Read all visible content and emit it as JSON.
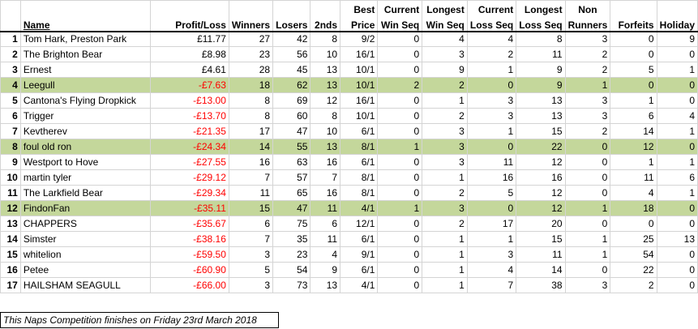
{
  "headers": {
    "row1": [
      "",
      "",
      "",
      "",
      "",
      "",
      "Best",
      "Current",
      "Longest",
      "Current",
      "Longest",
      "Non",
      "",
      ""
    ],
    "row2": [
      "",
      "Name",
      "Profit/Loss",
      "Winners",
      "Losers",
      "2nds",
      "Price",
      "Win Seq",
      "Win Seq",
      "Loss Seq",
      "Loss Seq",
      "Runners",
      "Forfeits",
      "Holiday"
    ]
  },
  "rows": [
    {
      "num": "1",
      "name": "Tom Hark, Preston Park",
      "pl": "£11.77",
      "win": "27",
      "lose": "42",
      "sec": "8",
      "price": "9/2",
      "cws": "0",
      "lws": "4",
      "cls": "4",
      "lls": "8",
      "nr": "3",
      "forf": "0",
      "hol": "9",
      "neg": false,
      "hl": false
    },
    {
      "num": "2",
      "name": "The Brighton Bear",
      "pl": "£8.98",
      "win": "23",
      "lose": "56",
      "sec": "10",
      "price": "16/1",
      "cws": "0",
      "lws": "3",
      "cls": "2",
      "lls": "11",
      "nr": "2",
      "forf": "0",
      "hol": "0",
      "neg": false,
      "hl": false
    },
    {
      "num": "3",
      "name": "Ernest",
      "pl": "£4.61",
      "win": "28",
      "lose": "45",
      "sec": "13",
      "price": "10/1",
      "cws": "0",
      "lws": "9",
      "cls": "1",
      "lls": "9",
      "nr": "2",
      "forf": "5",
      "hol": "1",
      "neg": false,
      "hl": false
    },
    {
      "num": "4",
      "name": "Leegull",
      "pl": "-£7.63",
      "win": "18",
      "lose": "62",
      "sec": "13",
      "price": "10/1",
      "cws": "2",
      "lws": "2",
      "cls": "0",
      "lls": "9",
      "nr": "1",
      "forf": "0",
      "hol": "0",
      "neg": true,
      "hl": true
    },
    {
      "num": "5",
      "name": "Cantona's Flying Dropkick",
      "pl": "-£13.00",
      "win": "8",
      "lose": "69",
      "sec": "12",
      "price": "16/1",
      "cws": "0",
      "lws": "1",
      "cls": "3",
      "lls": "13",
      "nr": "3",
      "forf": "1",
      "hol": "0",
      "neg": true,
      "hl": false
    },
    {
      "num": "6",
      "name": "Trigger",
      "pl": "-£13.70",
      "win": "8",
      "lose": "60",
      "sec": "8",
      "price": "10/1",
      "cws": "0",
      "lws": "2",
      "cls": "3",
      "lls": "13",
      "nr": "3",
      "forf": "6",
      "hol": "4",
      "neg": true,
      "hl": false
    },
    {
      "num": "7",
      "name": "Kevtherev",
      "pl": "-£21.35",
      "win": "17",
      "lose": "47",
      "sec": "10",
      "price": "6/1",
      "cws": "0",
      "lws": "3",
      "cls": "1",
      "lls": "15",
      "nr": "2",
      "forf": "14",
      "hol": "1",
      "neg": true,
      "hl": false
    },
    {
      "num": "8",
      "name": "foul old ron",
      "pl": "-£24.34",
      "win": "14",
      "lose": "55",
      "sec": "13",
      "price": "8/1",
      "cws": "1",
      "lws": "3",
      "cls": "0",
      "lls": "22",
      "nr": "0",
      "forf": "12",
      "hol": "0",
      "neg": true,
      "hl": true
    },
    {
      "num": "9",
      "name": "Westport to Hove",
      "pl": "-£27.55",
      "win": "16",
      "lose": "63",
      "sec": "16",
      "price": "6/1",
      "cws": "0",
      "lws": "3",
      "cls": "11",
      "lls": "12",
      "nr": "0",
      "forf": "1",
      "hol": "1",
      "neg": true,
      "hl": false
    },
    {
      "num": "10",
      "name": "martin tyler",
      "pl": "-£29.12",
      "win": "7",
      "lose": "57",
      "sec": "7",
      "price": "8/1",
      "cws": "0",
      "lws": "1",
      "cls": "16",
      "lls": "16",
      "nr": "0",
      "forf": "11",
      "hol": "6",
      "neg": true,
      "hl": false
    },
    {
      "num": "11",
      "name": "The Larkfield Bear",
      "pl": "-£29.34",
      "win": "11",
      "lose": "65",
      "sec": "16",
      "price": "8/1",
      "cws": "0",
      "lws": "2",
      "cls": "5",
      "lls": "12",
      "nr": "0",
      "forf": "4",
      "hol": "1",
      "neg": true,
      "hl": false
    },
    {
      "num": "12",
      "name": "FindonFan",
      "pl": "-£35.11",
      "win": "15",
      "lose": "47",
      "sec": "11",
      "price": "4/1",
      "cws": "1",
      "lws": "3",
      "cls": "0",
      "lls": "12",
      "nr": "1",
      "forf": "18",
      "hol": "0",
      "neg": true,
      "hl": true
    },
    {
      "num": "13",
      "name": "CHAPPERS",
      "pl": "-£35.67",
      "win": "6",
      "lose": "75",
      "sec": "6",
      "price": "12/1",
      "cws": "0",
      "lws": "2",
      "cls": "17",
      "lls": "20",
      "nr": "0",
      "forf": "0",
      "hol": "0",
      "neg": true,
      "hl": false
    },
    {
      "num": "14",
      "name": "Simster",
      "pl": "-£38.16",
      "win": "7",
      "lose": "35",
      "sec": "11",
      "price": "6/1",
      "cws": "0",
      "lws": "1",
      "cls": "1",
      "lls": "15",
      "nr": "1",
      "forf": "25",
      "hol": "13",
      "neg": true,
      "hl": false
    },
    {
      "num": "15",
      "name": "whitelion",
      "pl": "-£59.50",
      "win": "3",
      "lose": "23",
      "sec": "4",
      "price": "9/1",
      "cws": "0",
      "lws": "1",
      "cls": "3",
      "lls": "11",
      "nr": "1",
      "forf": "54",
      "hol": "0",
      "neg": true,
      "hl": false
    },
    {
      "num": "16",
      "name": "Petee",
      "pl": "-£60.90",
      "win": "5",
      "lose": "54",
      "sec": "9",
      "price": "6/1",
      "cws": "0",
      "lws": "1",
      "cls": "4",
      "lls": "14",
      "nr": "0",
      "forf": "22",
      "hol": "0",
      "neg": true,
      "hl": false
    },
    {
      "num": "17",
      "name": "HAILSHAM SEAGULL",
      "pl": "-£66.00",
      "win": "3",
      "lose": "73",
      "sec": "13",
      "price": "4/1",
      "cws": "0",
      "lws": "1",
      "cls": "7",
      "lls": "38",
      "nr": "3",
      "forf": "2",
      "hol": "0",
      "neg": true,
      "hl": false
    }
  ],
  "footer_note": "This Naps Competition finishes on Friday 23rd March 2018",
  "colors": {
    "highlight": "#c4d79b",
    "negative": "#ff0000"
  }
}
